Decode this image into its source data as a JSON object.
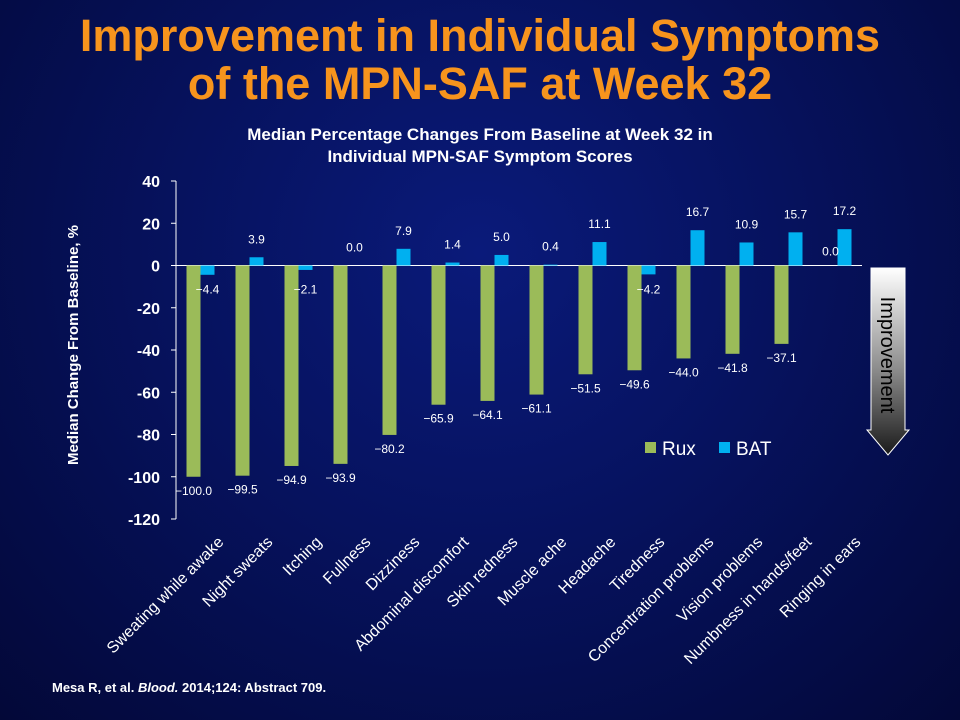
{
  "slide": {
    "title_line1": "Improvement in Individual Symptoms",
    "title_line2": "of the MPN-SAF at Week 32",
    "subtitle_line1": "Median Percentage Changes From Baseline at Week 32 in",
    "subtitle_line2": "Individual MPN-SAF Symptom Scores",
    "footnote_pre": "Mesa R, et al. ",
    "footnote_journal": "Blood.",
    "footnote_post": " 2014;124: Abstract 709.",
    "improvement_label": "Improvement"
  },
  "colors": {
    "title": "#f7941d",
    "rux": "#9bbb59",
    "bat": "#00b0f0",
    "text": "#ffffff"
  },
  "chart_data": {
    "type": "bar",
    "ylabel": "Median Change From Baseline, %",
    "ylim": [
      -120,
      40
    ],
    "yticks": [
      40,
      20,
      0,
      -20,
      -40,
      -60,
      -80,
      -100,
      -120
    ],
    "legend_position": "lower-right",
    "categories": [
      "Sweating while awake",
      "Night sweats",
      "Itching",
      "Fullness",
      "Dizziness",
      "Abdominal discomfort",
      "Skin redness",
      "Muscle ache",
      "Headache",
      "Tiredness",
      "Concentration problems",
      "Vision problems",
      "Numbness in hands/feet",
      "Ringing in ears"
    ],
    "series": [
      {
        "name": "Rux",
        "values": [
          -100.0,
          -99.5,
          -94.9,
          -93.9,
          -80.2,
          -65.9,
          -64.1,
          -61.1,
          -51.5,
          -49.6,
          -44.0,
          -41.8,
          -37.1,
          0.0
        ],
        "labels": [
          "−100.0",
          "−99.5",
          "−94.9",
          "−93.9",
          "−80.2",
          "−65.9",
          "−64.1",
          "−61.1",
          "−51.5",
          "−49.6",
          "−44.0",
          "−41.8",
          "−37.1",
          "0.0"
        ]
      },
      {
        "name": "BAT",
        "values": [
          -4.4,
          3.9,
          -2.1,
          0.0,
          7.9,
          1.4,
          5.0,
          0.4,
          11.1,
          -4.2,
          16.7,
          10.9,
          15.7,
          17.2
        ],
        "labels": [
          "−4.4",
          "3.9",
          "−2.1",
          "0.0",
          "7.9",
          "1.4",
          "5.0",
          "0.4",
          "11.1",
          "−4.2",
          "16.7",
          "10.9",
          "15.7",
          "17.2"
        ]
      }
    ]
  }
}
